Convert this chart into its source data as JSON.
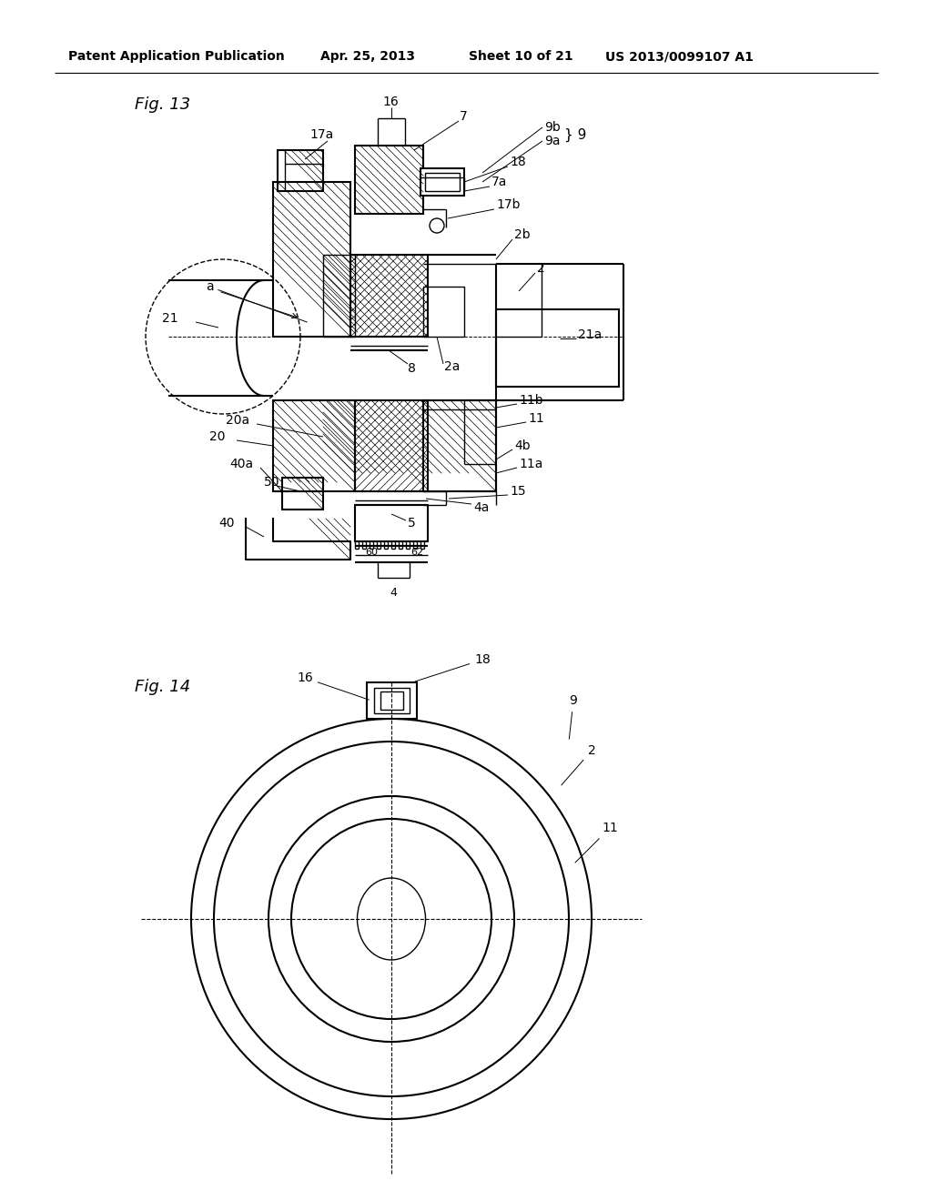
{
  "bg_color": "#ffffff",
  "header_text": "Patent Application Publication",
  "header_date": "Apr. 25, 2013",
  "header_sheet": "Sheet 10 of 21",
  "header_patent": "US 2013/0099107 A1",
  "fig13_label": "Fig. 13",
  "fig14_label": "Fig. 14",
  "line_color": "#000000",
  "label_fontsize": 10,
  "header_fontsize": 10,
  "fig_label_fontsize": 13
}
